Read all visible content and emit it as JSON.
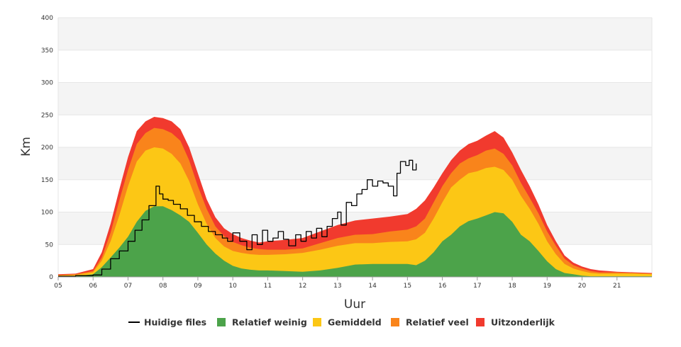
{
  "chart_data": {
    "type": "area",
    "xlabel": "Uur",
    "ylabel": "Km",
    "ylim": [
      0,
      400
    ],
    "xlim": [
      5.0,
      22.0
    ],
    "y_ticks": [
      0,
      50,
      100,
      150,
      200,
      250,
      300,
      350,
      400
    ],
    "x_ticks": [
      "05",
      "06",
      "07",
      "08",
      "09",
      "10",
      "11",
      "12",
      "13",
      "14",
      "15",
      "16",
      "17",
      "18",
      "19",
      "20",
      "21"
    ],
    "grid": true,
    "legend_position": "bottom",
    "colors": {
      "huidige": "#000000",
      "weinig": "#4ca34a",
      "gemiddeld": "#fcc715",
      "veel": "#f9841b",
      "uitzonderlijk": "#f13a2e",
      "band": "#f4f4f4",
      "grid": "#e6e6e6"
    },
    "x": [
      5.0,
      5.5,
      6.0,
      6.25,
      6.5,
      6.75,
      7.0,
      7.25,
      7.5,
      7.75,
      8.0,
      8.25,
      8.5,
      8.75,
      9.0,
      9.25,
      9.5,
      9.75,
      10.0,
      10.25,
      10.5,
      10.75,
      11.0,
      11.5,
      12.0,
      12.5,
      13.0,
      13.5,
      14.0,
      14.5,
      15.0,
      15.25,
      15.5,
      15.75,
      16.0,
      16.25,
      16.5,
      16.75,
      17.0,
      17.25,
      17.5,
      17.75,
      18.0,
      18.25,
      18.5,
      18.75,
      19.0,
      19.25,
      19.5,
      19.75,
      20.0,
      20.25,
      20.5,
      20.75,
      21.0,
      21.5,
      22.0
    ],
    "series": [
      {
        "name": "Relatief weinig",
        "values": [
          0,
          1,
          4,
          15,
          30,
          45,
          62,
          85,
          102,
          109,
          109,
          103,
          95,
          85,
          68,
          50,
          36,
          25,
          17,
          13,
          11,
          10,
          10,
          9,
          8,
          10,
          14,
          19,
          20,
          20,
          20,
          18,
          25,
          38,
          55,
          65,
          78,
          86,
          90,
          95,
          100,
          98,
          85,
          65,
          55,
          40,
          24,
          12,
          6,
          4,
          2,
          1,
          1,
          1,
          1,
          1,
          1
        ]
      },
      {
        "name": "Gemiddeld",
        "values": [
          2,
          3,
          7,
          25,
          55,
          95,
          140,
          178,
          195,
          200,
          198,
          190,
          175,
          148,
          112,
          82,
          60,
          47,
          40,
          37,
          35,
          34,
          34,
          35,
          37,
          42,
          48,
          52,
          52,
          54,
          55,
          58,
          68,
          90,
          115,
          138,
          150,
          160,
          163,
          168,
          170,
          165,
          150,
          125,
          105,
          82,
          55,
          35,
          20,
          13,
          9,
          6,
          5,
          5,
          5,
          5,
          4
        ]
      },
      {
        "name": "Relatief veel",
        "values": [
          3,
          4,
          9,
          30,
          68,
          118,
          165,
          205,
          222,
          230,
          228,
          222,
          210,
          180,
          140,
          105,
          78,
          63,
          54,
          49,
          45,
          43,
          42,
          42,
          44,
          52,
          60,
          65,
          66,
          70,
          73,
          78,
          90,
          115,
          140,
          160,
          175,
          183,
          188,
          195,
          198,
          190,
          172,
          145,
          122,
          98,
          70,
          48,
          28,
          18,
          13,
          9,
          7,
          7,
          7,
          6,
          5
        ]
      },
      {
        "name": "Uitzonderlijk",
        "values": [
          4,
          5,
          12,
          38,
          82,
          135,
          185,
          225,
          240,
          247,
          245,
          240,
          228,
          200,
          160,
          120,
          92,
          75,
          66,
          60,
          56,
          53,
          55,
          57,
          60,
          70,
          80,
          87,
          90,
          93,
          97,
          105,
          118,
          138,
          160,
          180,
          195,
          205,
          210,
          218,
          225,
          215,
          192,
          165,
          140,
          112,
          80,
          55,
          33,
          22,
          16,
          12,
          10,
          9,
          8,
          7,
          6
        ]
      },
      {
        "name": "Huidige files",
        "x": [
          5.0,
          5.5,
          6.0,
          6.25,
          6.5,
          6.75,
          7.0,
          7.2,
          7.4,
          7.6,
          7.8,
          7.9,
          8.0,
          8.15,
          8.3,
          8.5,
          8.7,
          8.9,
          9.1,
          9.3,
          9.5,
          9.7,
          9.85,
          10.0,
          10.2,
          10.4,
          10.55,
          10.7,
          10.85,
          11.0,
          11.15,
          11.3,
          11.45,
          11.6,
          11.8,
          11.95,
          12.1,
          12.25,
          12.4,
          12.55,
          12.7,
          12.85,
          13.0,
          13.1,
          13.25,
          13.4,
          13.55,
          13.7,
          13.85,
          14.0,
          14.15,
          14.3,
          14.45,
          14.6,
          14.7,
          14.8,
          14.95,
          15.05,
          15.15,
          15.25
        ],
        "values": [
          1,
          2,
          3,
          12,
          28,
          40,
          55,
          72,
          88,
          110,
          140,
          128,
          120,
          118,
          112,
          105,
          95,
          85,
          78,
          70,
          65,
          60,
          55,
          68,
          55,
          42,
          65,
          50,
          72,
          55,
          60,
          70,
          58,
          48,
          65,
          55,
          70,
          60,
          75,
          62,
          78,
          90,
          100,
          80,
          115,
          110,
          128,
          135,
          150,
          140,
          148,
          145,
          140,
          125,
          160,
          178,
          172,
          180,
          165,
          175
        ]
      }
    ],
    "legend": [
      "Huidige files",
      "Relatief weinig",
      "Gemiddeld",
      "Relatief veel",
      "Uitzonderlijk"
    ]
  }
}
